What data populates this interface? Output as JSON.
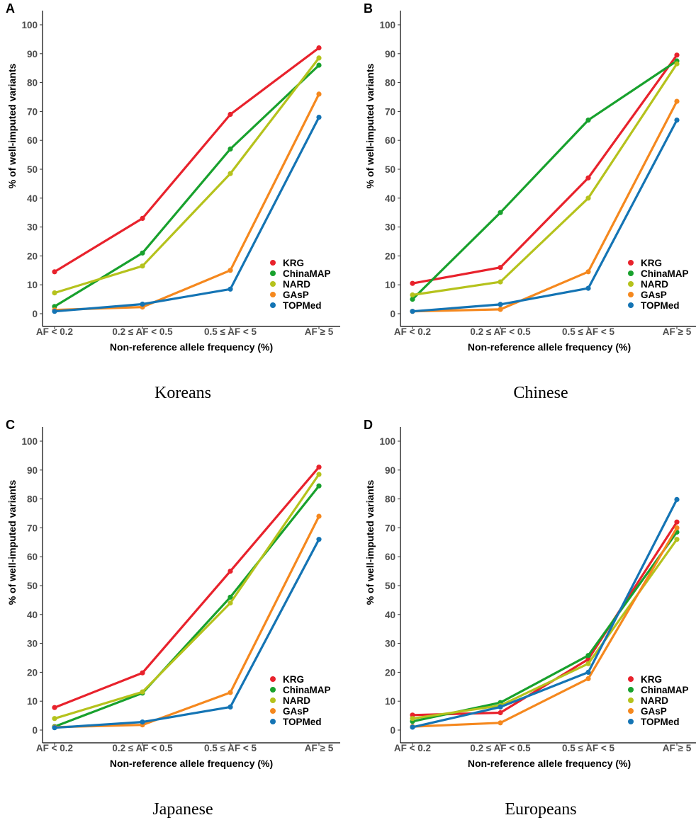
{
  "chart_data": [
    {
      "panel": "A",
      "caption": "Koreans",
      "type": "line",
      "categories": [
        "AF < 0.2",
        "0.2 ≤ AF < 0.5",
        "0.5 ≤ AF < 5",
        "AF ≥ 5"
      ],
      "xlabel": "Non-reference allele frequency (%)",
      "ylabel": "% of well-imputed variants",
      "ylim": [
        0,
        100
      ],
      "yticks": [
        0,
        10,
        20,
        30,
        40,
        50,
        60,
        70,
        80,
        90,
        100
      ],
      "series": [
        {
          "name": "KRG",
          "color": "#e8222c",
          "values": [
            14.5,
            33,
            69,
            92
          ]
        },
        {
          "name": "ChinaMAP",
          "color": "#18a12d",
          "values": [
            2.5,
            21,
            57,
            86
          ]
        },
        {
          "name": "NARD",
          "color": "#b5c21c",
          "values": [
            7.2,
            16.5,
            48.5,
            88.5
          ]
        },
        {
          "name": "GAsP",
          "color": "#f5881e",
          "values": [
            1.3,
            2.3,
            15,
            76
          ]
        },
        {
          "name": "TOPMed",
          "color": "#1474b4",
          "values": [
            0.8,
            3.3,
            8.5,
            68
          ]
        }
      ]
    },
    {
      "panel": "B",
      "caption": "Chinese",
      "type": "line",
      "categories": [
        "AF < 0.2",
        "0.2 ≤ AF < 0.5",
        "0.5 ≤ AF < 5",
        "AF ≥ 5"
      ],
      "xlabel": "Non-reference allele frequency (%)",
      "ylabel": "% of well-imputed variants",
      "ylim": [
        0,
        100
      ],
      "yticks": [
        0,
        10,
        20,
        30,
        40,
        50,
        60,
        70,
        80,
        90,
        100
      ],
      "series": [
        {
          "name": "KRG",
          "color": "#e8222c",
          "values": [
            10.5,
            16,
            47,
            89.5
          ]
        },
        {
          "name": "ChinaMAP",
          "color": "#18a12d",
          "values": [
            5,
            35,
            67,
            87.5
          ]
        },
        {
          "name": "NARD",
          "color": "#b5c21c",
          "values": [
            6.5,
            11,
            40,
            86.5
          ]
        },
        {
          "name": "GAsP",
          "color": "#f5881e",
          "values": [
            0.8,
            1.5,
            14.5,
            73.5
          ]
        },
        {
          "name": "TOPMed",
          "color": "#1474b4",
          "values": [
            0.8,
            3.2,
            8.8,
            67
          ]
        }
      ]
    },
    {
      "panel": "C",
      "caption": "Japanese",
      "type": "line",
      "categories": [
        "AF < 0.2",
        "0.2 ≤ AF < 0.5",
        "0.5 ≤ AF < 5",
        "AF ≥ 5"
      ],
      "xlabel": "Non-reference allele frequency (%)",
      "ylabel": "% of well-imputed variants",
      "ylim": [
        0,
        100
      ],
      "yticks": [
        0,
        10,
        20,
        30,
        40,
        50,
        60,
        70,
        80,
        90,
        100
      ],
      "series": [
        {
          "name": "KRG",
          "color": "#e8222c",
          "values": [
            7.8,
            19.8,
            55,
            91
          ]
        },
        {
          "name": "ChinaMAP",
          "color": "#18a12d",
          "values": [
            1.2,
            12.8,
            46,
            84.5
          ]
        },
        {
          "name": "NARD",
          "color": "#b5c21c",
          "values": [
            4,
            13.2,
            44,
            88.5
          ]
        },
        {
          "name": "GAsP",
          "color": "#f5881e",
          "values": [
            1,
            1.8,
            13,
            74
          ]
        },
        {
          "name": "TOPMed",
          "color": "#1474b4",
          "values": [
            0.8,
            2.8,
            8,
            66
          ]
        }
      ]
    },
    {
      "panel": "D",
      "caption": "Europeans",
      "type": "line",
      "categories": [
        "AF < 0.2",
        "0.2 ≤ AF < 0.5",
        "0.5 ≤ AF < 5",
        "AF ≥ 5"
      ],
      "xlabel": "Non-reference allele frequency (%)",
      "ylabel": "% of well-imputed variants",
      "ylim": [
        0,
        100
      ],
      "yticks": [
        0,
        10,
        20,
        30,
        40,
        50,
        60,
        70,
        80,
        90,
        100
      ],
      "series": [
        {
          "name": "KRG",
          "color": "#e8222c",
          "values": [
            5.2,
            6,
            24.5,
            72
          ]
        },
        {
          "name": "ChinaMAP",
          "color": "#18a12d",
          "values": [
            3,
            9.5,
            25.8,
            68.5
          ]
        },
        {
          "name": "NARD",
          "color": "#b5c21c",
          "values": [
            4,
            8.5,
            23,
            66
          ]
        },
        {
          "name": "GAsP",
          "color": "#f5881e",
          "values": [
            1.2,
            2.5,
            17.8,
            70
          ]
        },
        {
          "name": "TOPMed",
          "color": "#1474b4",
          "values": [
            1,
            8,
            20,
            79.8
          ]
        }
      ]
    }
  ]
}
